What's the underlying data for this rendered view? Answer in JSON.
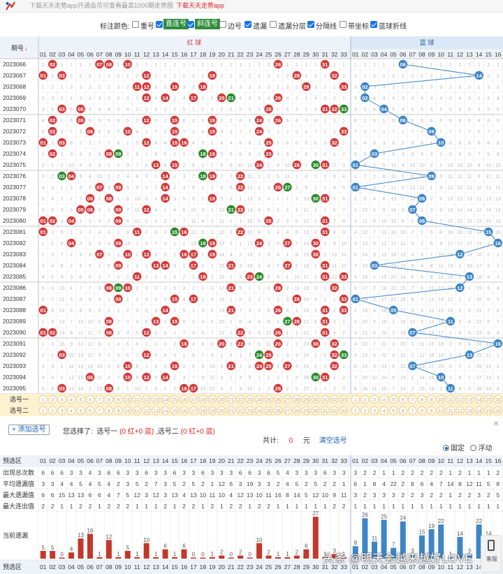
{
  "banner": {
    "text": "下载天天走势app开通会员可查看最高1000期走势图",
    "link": "下载天天走势app"
  },
  "toolbar": {
    "label": "标注颜色:",
    "options": [
      {
        "label": "重号",
        "checked": false
      },
      {
        "label": "直连号",
        "checked": true
      },
      {
        "label": "斜连号",
        "checked": true
      },
      {
        "label": "边号",
        "checked": false
      },
      {
        "label": "遗漏",
        "checked": true
      },
      {
        "label": "遗漏分层",
        "checked": false
      },
      {
        "label": "分隔线",
        "checked": true
      },
      {
        "label": "带坐标",
        "checked": false
      },
      {
        "label": "蓝球折线",
        "checked": true
      }
    ]
  },
  "table": {
    "issue_header": "期号",
    "sort_arrow": "↓",
    "red_header": "红 球",
    "blue_header": "蓝 球",
    "red_cols": [
      "01",
      "02",
      "03",
      "04",
      "05",
      "06",
      "07",
      "08",
      "09",
      "10",
      "11",
      "12",
      "13",
      "14",
      "15",
      "16",
      "17",
      "18",
      "19",
      "20",
      "21",
      "22",
      "23",
      "24",
      "25",
      "26",
      "27",
      "28",
      "29",
      "30",
      "31",
      "32",
      "33"
    ],
    "blue_cols": [
      "01",
      "02",
      "03",
      "04",
      "05",
      "06",
      "07",
      "08",
      "09",
      "10",
      "11",
      "12",
      "13",
      "14",
      "15",
      "16"
    ],
    "rows": [
      {
        "issue": "2023066",
        "red": [
          2,
          7,
          8,
          10,
          26,
          31
        ],
        "blue": 6
      },
      {
        "issue": "2023067",
        "red": [
          1,
          3,
          12,
          19,
          28,
          32
        ],
        "blue": 14
      },
      {
        "issue": "2023068",
        "red": [
          11,
          12,
          15,
          18,
          29,
          33
        ],
        "blue": 2
      },
      {
        "issue": "2023069",
        "red": [
          12,
          14,
          17,
          20,
          21,
          26
        ],
        "blue": 2
      },
      {
        "issue": "2023070",
        "red": [
          3,
          5,
          25,
          31,
          32,
          33
        ],
        "blue": 4
      },
      {
        "issue": "2023071",
        "red": [
          2,
          5,
          12,
          15,
          19,
          24,
          26
        ],
        "blue": 6
      },
      {
        "issue": "2023072",
        "red": [
          2,
          6,
          10,
          15,
          19,
          24,
          33
        ],
        "blue": 9
      },
      {
        "issue": "2023073",
        "red": [
          1,
          3,
          12,
          15,
          16,
          25,
          32
        ],
        "blue": 10
      },
      {
        "issue": "2023074",
        "red": [
          2,
          8,
          9,
          18,
          19,
          25
        ],
        "blue": 3
      },
      {
        "issue": "2023075",
        "red": [
          13,
          15,
          24,
          28,
          30,
          31
        ],
        "blue": 1
      },
      {
        "issue": "2023076",
        "red": [
          3,
          4,
          14,
          18,
          19,
          22
        ],
        "blue": 9
      },
      {
        "issue": "2023077",
        "red": [
          7,
          9,
          14,
          22,
          26,
          27
        ],
        "blue": 1
      },
      {
        "issue": "2023078",
        "red": [
          6,
          8,
          14,
          19,
          30,
          31
        ],
        "blue": 8
      },
      {
        "issue": "2023079",
        "red": [
          5,
          6,
          9,
          12,
          21,
          22
        ],
        "blue": 7
      },
      {
        "issue": "2023080",
        "red": [
          1,
          2,
          4,
          9,
          25,
          31
        ],
        "blue": 8
      },
      {
        "issue": "2023081",
        "red": [
          1,
          11,
          15,
          16,
          22,
          31
        ],
        "blue": 15
      },
      {
        "issue": "2023082",
        "red": [
          4,
          9,
          18,
          19,
          24,
          27,
          30
        ],
        "blue": 16
      },
      {
        "issue": "2023083",
        "red": [
          7,
          10,
          12,
          16,
          17,
          19,
          30
        ],
        "blue": 12
      },
      {
        "issue": "2023084",
        "red": [
          9,
          13,
          14,
          17,
          21,
          27,
          31
        ],
        "blue": 3
      },
      {
        "issue": "2023085",
        "red": [
          11,
          18,
          23,
          24,
          31,
          33
        ],
        "blue": 13
      },
      {
        "issue": "2023086",
        "red": [
          8,
          9,
          10,
          21,
          26,
          32
        ],
        "blue": 12
      },
      {
        "issue": "2023087",
        "red": [
          9,
          15,
          17,
          28,
          33
        ],
        "blue": 1
      },
      {
        "issue": "2023088",
        "red": [
          1,
          14,
          21,
          26,
          31,
          33
        ],
        "blue": 5
      },
      {
        "issue": "2023089",
        "red": [
          8,
          13,
          15,
          27,
          28,
          31
        ],
        "blue": 11
      },
      {
        "issue": "2023090",
        "red": [
          1,
          2,
          8,
          12,
          22,
          26,
          31
        ],
        "blue": 7
      },
      {
        "issue": "2023091",
        "red": [
          16,
          20,
          22,
          26,
          30,
          32
        ],
        "blue": 16
      },
      {
        "issue": "2023092",
        "red": [
          3,
          12,
          24,
          25,
          32,
          33
        ],
        "blue": 13
      },
      {
        "issue": "2023093",
        "red": [
          10,
          15,
          21,
          24,
          25,
          27,
          32
        ],
        "blue": 7
      },
      {
        "issue": "2023094",
        "red": [
          6,
          10,
          12,
          14,
          30,
          31
        ],
        "blue": 10
      },
      {
        "issue": "2023095",
        "red": [
          3,
          8,
          16,
          17,
          26
        ],
        "blue": 11
      }
    ],
    "select_rows": [
      "选号一",
      "选号二"
    ]
  },
  "selection": {
    "add_button": "+ 添加选号",
    "chosen_prefix": "您选择了:",
    "pick1": "选号一",
    "pick1_detail": "(0 红+0 蓝)",
    "pick2": ",选号二",
    "pick2_detail": "(0 红+0 蓝)",
    "total_label": "共计:",
    "total_value": "0",
    "total_unit": "元",
    "clear": "清空选号",
    "fixed": "固定",
    "float": "浮动"
  },
  "stats": {
    "labels": [
      "预选区",
      "出现总次数",
      "平均遗漏值",
      "最大遗漏值",
      "最大连出值",
      "当前遗漏",
      "预选区"
    ],
    "red_total": [
      6,
      6,
      6,
      3,
      3,
      4,
      3,
      6,
      6,
      3,
      3,
      6,
      3,
      3,
      6,
      3,
      3,
      6,
      3,
      3,
      3,
      6,
      6,
      3,
      6,
      5,
      4,
      3,
      3,
      3,
      6,
      3,
      3
    ],
    "red_avg": [
      3,
      3,
      4,
      4,
      5,
      4,
      5,
      4,
      2,
      3,
      5,
      2,
      7,
      3,
      5,
      2,
      5,
      2,
      1,
      12,
      6,
      3,
      19,
      3,
      3,
      2,
      4,
      5,
      2,
      5,
      2,
      2,
      1
    ],
    "red_max": [
      6,
      6,
      15,
      13,
      13,
      6,
      6,
      4,
      7,
      5,
      12,
      3,
      12,
      3,
      13,
      4,
      13,
      10,
      11,
      10,
      4,
      12,
      13,
      10,
      11,
      16,
      8,
      14,
      5,
      12,
      10,
      9,
      11
    ],
    "red_streak": [
      2,
      2,
      1,
      1,
      2,
      2,
      1,
      2,
      2,
      2,
      1,
      1,
      1,
      2,
      1,
      2,
      2,
      1,
      2,
      1,
      2,
      2,
      1,
      2,
      2,
      1,
      1,
      1,
      1,
      1,
      1,
      2,
      2
    ],
    "red_current": [
      5,
      5,
      0,
      4,
      13,
      16,
      1,
      12,
      1,
      5,
      1,
      10,
      1,
      6,
      1,
      6,
      0,
      0,
      1,
      2,
      0,
      2,
      0,
      10,
      2,
      1,
      1,
      2,
      6,
      27,
      1,
      3,
      1
    ],
    "blue_total": [
      3,
      2,
      2,
      1,
      1,
      2,
      2,
      2,
      2,
      2,
      1,
      2,
      1,
      1,
      1,
      2
    ],
    "blue_avg": [
      6,
      1,
      8,
      4,
      22,
      2,
      8,
      6,
      4,
      7,
      14,
      8,
      12,
      11,
      5,
      8
    ],
    "blue_max": [
      3,
      2,
      3,
      3,
      3,
      2,
      2,
      3,
      2,
      2,
      1,
      2,
      2,
      3,
      2,
      5
    ],
    "blue_streak": [
      1,
      1,
      1,
      1,
      1,
      1,
      1,
      1,
      1,
      1,
      1,
      1,
      1,
      1,
      1,
      1
    ],
    "blue_current": [
      8,
      26,
      11,
      25,
      7,
      24,
      3,
      15,
      19,
      22,
      1,
      14,
      3,
      22,
      14,
      4
    ]
  },
  "colors": {
    "red_ball": "#d23b3b",
    "green_ball": "#2a8a2a",
    "blue_ball": "#3d85c6",
    "header_bg": "#eef3fa",
    "select_bg": "#fdf1cf",
    "bar": "#c0392b"
  },
  "watermark": "头条 @明天会越来越好LOVE",
  "side_button": "客服"
}
